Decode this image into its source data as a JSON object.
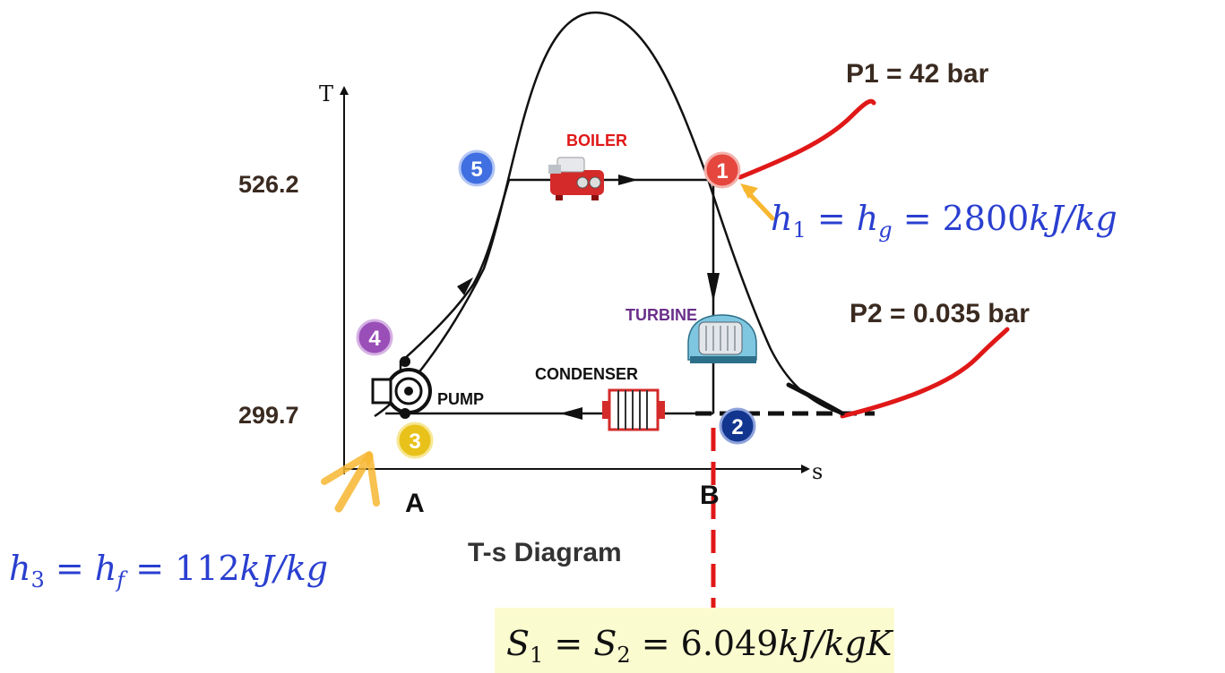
{
  "diagram": {
    "title": "T-s Diagram",
    "axis_t_label": "T",
    "axis_s_label": "s",
    "temp_high": "526.2",
    "temp_low": "299.7",
    "entropy_a": "A",
    "entropy_b": "B"
  },
  "states": [
    {
      "number": "1",
      "color": "#e5473f"
    },
    {
      "number": "2",
      "color": "#12358f"
    },
    {
      "number": "3",
      "color": "#e8c21a"
    },
    {
      "number": "4",
      "color": "#9a4fb8"
    },
    {
      "number": "5",
      "color": "#3f6fe0"
    }
  ],
  "components": {
    "boiler": "BOILER",
    "turbine": "TURBINE",
    "condenser": "CONDENSER",
    "pump": "PUMP"
  },
  "pressures": {
    "p1": "P1 = 42 bar",
    "p2": "P2 = 0.035 bar"
  },
  "equations": {
    "h1": {
      "symbol": "h",
      "sub": "1",
      "eq1": " = ",
      "symbol2": "h",
      "sub2": "g",
      "eq2": " = ",
      "value": "2800",
      "unit": "kJ/kg"
    },
    "h3": {
      "symbol": "h",
      "sub": "3",
      "eq1": " = ",
      "symbol2": "h",
      "sub2": "f",
      "eq2": " = ",
      "value": "112",
      "unit": "kJ/kg"
    },
    "s": {
      "symbol": "S",
      "sub": "1",
      "eq1": " = ",
      "symbol2": "S",
      "sub2": "2",
      "eq2": " = ",
      "value": "6.049",
      "unit": "kJ/kgK"
    }
  },
  "colors": {
    "equation_blue": "#2a3fd0",
    "red_line": "#e01818",
    "formula_bg": "#fbfbd0",
    "accent_yellow": "#f7b731"
  }
}
